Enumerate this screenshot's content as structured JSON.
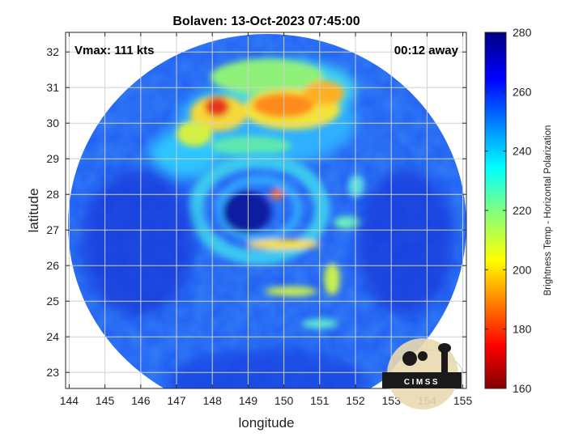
{
  "chart_data": {
    "type": "heatmap",
    "title": "Bolaven: 13-Oct-2023 07:45:00",
    "xlabel": "longitude",
    "ylabel": "latitude",
    "xlim": [
      143.9,
      155.1
    ],
    "ylim": [
      22.55,
      32.55
    ],
    "x_ticks": [
      144,
      145,
      146,
      147,
      148,
      149,
      150,
      151,
      152,
      153,
      154,
      155
    ],
    "y_ticks": [
      23,
      24,
      25,
      26,
      27,
      28,
      29,
      30,
      31,
      32
    ],
    "grid": true,
    "annotations": {
      "vmax": "Vmax: 111 kts",
      "time_offset": "00:12 away"
    },
    "storm_center": {
      "lon": 150.0,
      "lat": 27.75
    },
    "colorbar": {
      "label": "Brightness Temp - Horizontal Polarization",
      "range": [
        160,
        280
      ],
      "ticks": [
        160,
        180,
        200,
        220,
        240,
        260,
        280
      ],
      "colormap": "jet"
    }
  },
  "logo": {
    "text": "CIMSS"
  }
}
